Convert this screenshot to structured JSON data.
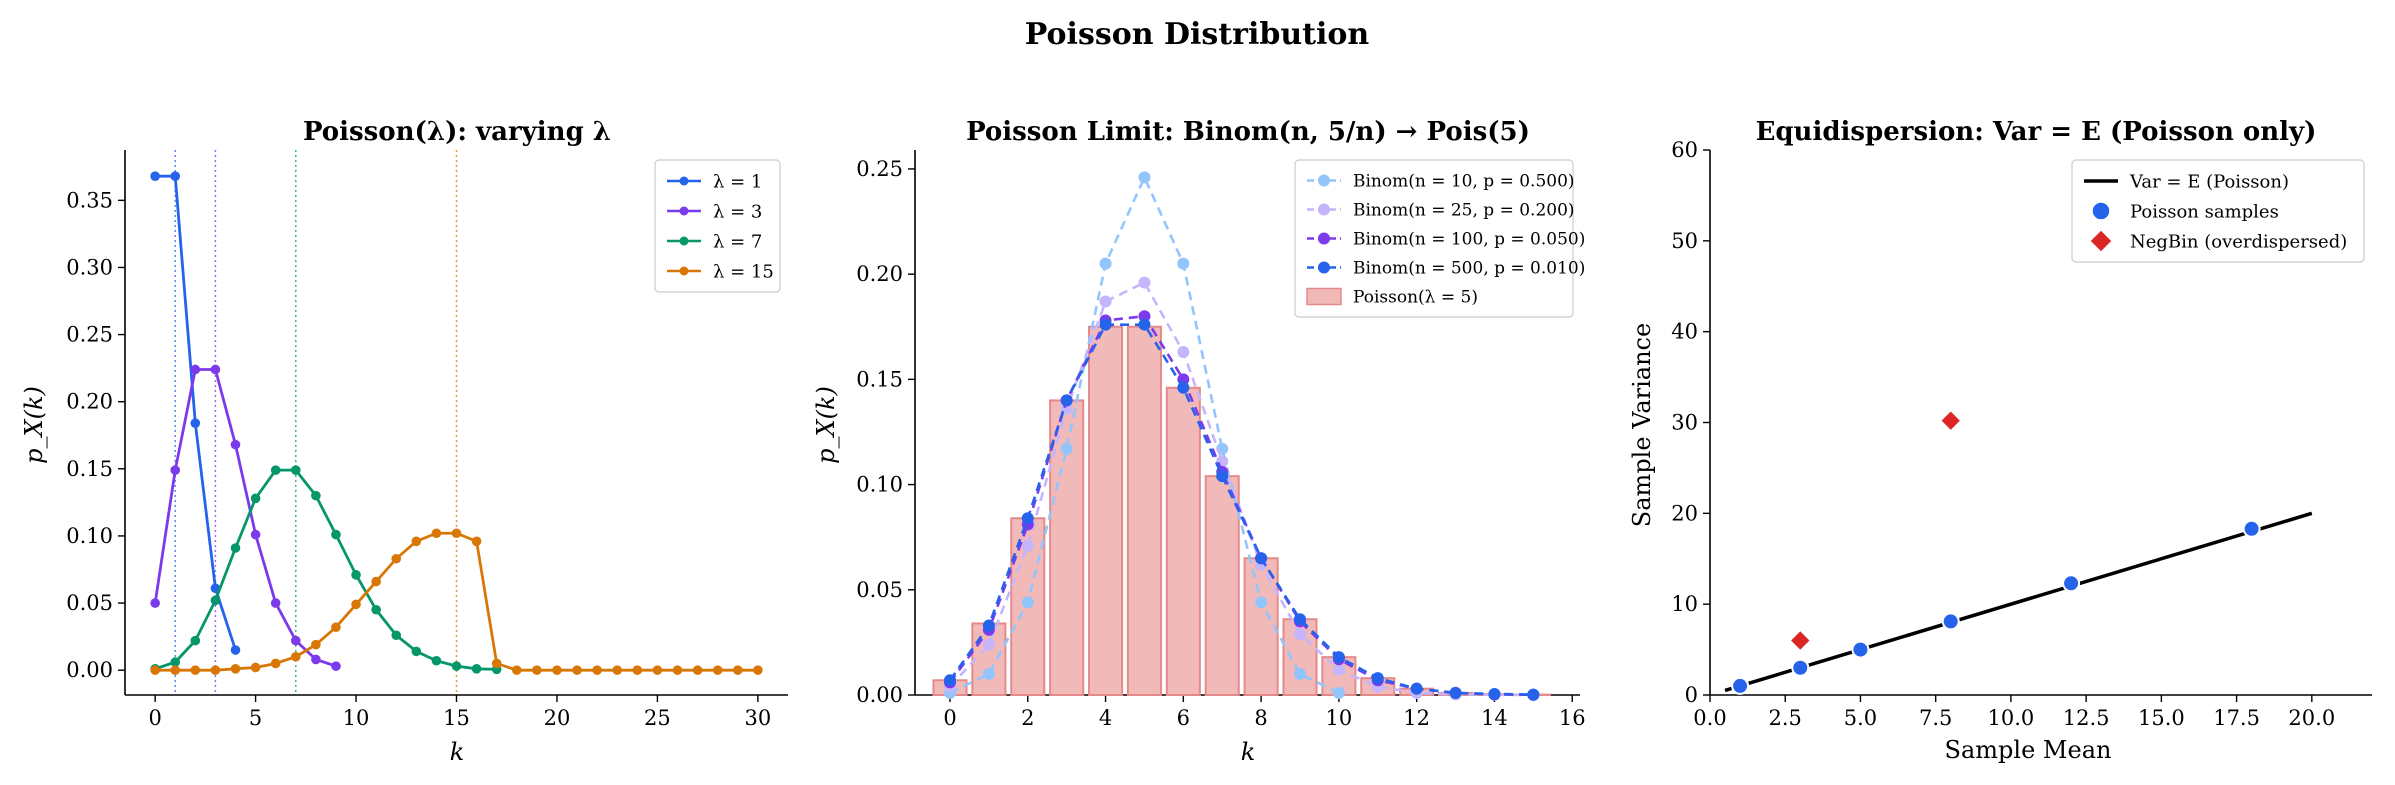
{
  "suptitle": "Poisson Distribution",
  "colors": {
    "l1": "#2563eb",
    "l3": "#7c3aed",
    "l7": "#059669",
    "l15": "#d97706",
    "binom10": "#93c5fd",
    "binom25": "#c4b5fd",
    "binom100": "#7c3aed",
    "binom500": "#2563eb",
    "poisson_bar_fill": "#f2b9b9",
    "poisson_bar_edge": "#e58a8a",
    "line": "#000000",
    "poisson_pts": "#2563eb",
    "negbin": "#dc2626"
  },
  "chart_data": [
    {
      "type": "line",
      "title": "Poisson(λ): varying λ",
      "xlabel": "k",
      "ylabel": "p_X(k)",
      "xlim": [
        -1.5,
        31.5
      ],
      "ylim": [
        -0.0185,
        0.3875
      ],
      "xticks": [
        "0",
        "5",
        "10",
        "15",
        "20",
        "25",
        "30"
      ],
      "yticks": [
        "0.00",
        "0.05",
        "0.10",
        "0.15",
        "0.20",
        "0.25",
        "0.30",
        "0.35"
      ],
      "legend_position": "top-right",
      "series": [
        {
          "name": "λ = 1",
          "color_key": "l1",
          "x": [
            0,
            1,
            2,
            3,
            4
          ],
          "values": [
            0.368,
            0.368,
            0.184,
            0.061,
            0.015
          ],
          "mean_line": 1
        },
        {
          "name": "λ = 3",
          "color_key": "l3",
          "x": [
            0,
            1,
            2,
            3,
            4,
            5,
            6,
            7,
            8,
            9
          ],
          "values": [
            0.05,
            0.149,
            0.224,
            0.224,
            0.168,
            0.101,
            0.05,
            0.022,
            0.008,
            0.003
          ],
          "mean_line": 3
        },
        {
          "name": "λ = 7",
          "color_key": "l7",
          "x": [
            0,
            1,
            2,
            3,
            4,
            5,
            6,
            7,
            8,
            9,
            10,
            11,
            12,
            13,
            14,
            15,
            16,
            17
          ],
          "values": [
            0.001,
            0.006,
            0.022,
            0.052,
            0.091,
            0.128,
            0.149,
            0.149,
            0.13,
            0.101,
            0.071,
            0.045,
            0.026,
            0.014,
            0.007,
            0.003,
            0.001,
            0.0006
          ],
          "mean_line": 7
        },
        {
          "name": "λ = 15",
          "color_key": "l15",
          "x": [
            0,
            1,
            2,
            3,
            4,
            5,
            6,
            7,
            8,
            9,
            10,
            11,
            12,
            13,
            14,
            15,
            16,
            17,
            18,
            19,
            20,
            21,
            22,
            23,
            24,
            25,
            26,
            27,
            28,
            29,
            30
          ],
          "values": [
            0,
            0,
            0,
            0,
            0.001,
            0.002,
            0.005,
            0.01,
            0.019,
            0.032,
            0.049,
            0.066,
            0.083,
            0.096,
            0.102,
            0.102,
            0.096,
            0.005,
            0,
            0,
            0,
            0,
            0,
            0,
            0,
            0,
            0,
            0,
            0,
            0,
            0
          ],
          "mean_line": 15
        }
      ]
    },
    {
      "type": "bar",
      "title": "Poisson Limit: Binom(n, 5/n) → Pois(5)",
      "xlabel": "k",
      "ylabel": "p_X(k)",
      "xlim": [
        -0.9,
        16.2
      ],
      "ylim": [
        0,
        0.259
      ],
      "xticks": [
        "0",
        "2",
        "4",
        "6",
        "8",
        "10",
        "12",
        "14",
        "16"
      ],
      "yticks": [
        "0.00",
        "0.05",
        "0.10",
        "0.15",
        "0.20",
        "0.25"
      ],
      "legend_position": "top-right",
      "bars": {
        "name": "Poisson(λ = 5)",
        "x": [
          0,
          1,
          2,
          3,
          4,
          5,
          6,
          7,
          8,
          9,
          10,
          11,
          12,
          13,
          14,
          15
        ],
        "values": [
          0.007,
          0.034,
          0.084,
          0.14,
          0.175,
          0.175,
          0.146,
          0.104,
          0.065,
          0.036,
          0.018,
          0.008,
          0.003,
          0.001,
          0.0005,
          0.0002
        ]
      },
      "series": [
        {
          "name": "Binom(n = 10, p = 0.500)",
          "color_key": "binom10",
          "x": [
            0,
            1,
            2,
            3,
            4,
            5,
            6,
            7,
            8,
            9,
            10
          ],
          "values": [
            0.001,
            0.01,
            0.044,
            0.117,
            0.205,
            0.246,
            0.205,
            0.117,
            0.044,
            0.01,
            0.001
          ]
        },
        {
          "name": "Binom(n = 25, p = 0.200)",
          "color_key": "binom25",
          "x": [
            0,
            1,
            2,
            3,
            4,
            5,
            6,
            7,
            8,
            9,
            10,
            11,
            12,
            13,
            14,
            15
          ],
          "values": [
            0.004,
            0.024,
            0.071,
            0.136,
            0.187,
            0.196,
            0.163,
            0.111,
            0.062,
            0.029,
            0.012,
            0.004,
            0.001,
            0.0003,
            0.0001,
            0
          ]
        },
        {
          "name": "Binom(n = 100, p = 0.050)",
          "color_key": "binom100",
          "x": [
            0,
            1,
            2,
            3,
            4,
            5,
            6,
            7,
            8,
            9,
            10,
            11,
            12,
            13,
            14,
            15
          ],
          "values": [
            0.006,
            0.031,
            0.081,
            0.14,
            0.178,
            0.18,
            0.15,
            0.106,
            0.065,
            0.035,
            0.017,
            0.007,
            0.003,
            0.001,
            0.0003,
            0.0001
          ]
        },
        {
          "name": "Binom(n = 500, p = 0.010)",
          "color_key": "binom500",
          "x": [
            0,
            1,
            2,
            3,
            4,
            5,
            6,
            7,
            8,
            9,
            10,
            11,
            12,
            13,
            14,
            15
          ],
          "values": [
            0.007,
            0.033,
            0.084,
            0.14,
            0.176,
            0.176,
            0.146,
            0.104,
            0.065,
            0.036,
            0.018,
            0.008,
            0.003,
            0.001,
            0.0005,
            0.0002
          ]
        }
      ]
    },
    {
      "type": "scatter",
      "title": "Equidispersion: Var = E (Poisson only)",
      "xlabel": "Sample Mean",
      "ylabel": "Sample Variance",
      "xlim": [
        0,
        22
      ],
      "ylim": [
        0,
        60
      ],
      "xticks": [
        "0.0",
        "2.5",
        "5.0",
        "7.5",
        "10.0",
        "12.5",
        "15.0",
        "17.5",
        "20.0"
      ],
      "yticks": [
        "0",
        "10",
        "20",
        "30",
        "40",
        "50",
        "60"
      ],
      "legend_position": "top-right",
      "line": {
        "name": "Var = E (Poisson)",
        "x": [
          0.5,
          20
        ],
        "values": [
          0.5,
          20
        ]
      },
      "poisson_samples": {
        "name": "Poisson samples",
        "x": [
          1,
          3,
          5,
          8,
          12,
          18
        ],
        "values": [
          1.0,
          3.0,
          5.0,
          8.1,
          12.3,
          18.3
        ]
      },
      "negbin": {
        "name": "NegBin (overdispersed)",
        "x": [
          3,
          8
        ],
        "values": [
          6.0,
          30.2
        ]
      }
    }
  ]
}
